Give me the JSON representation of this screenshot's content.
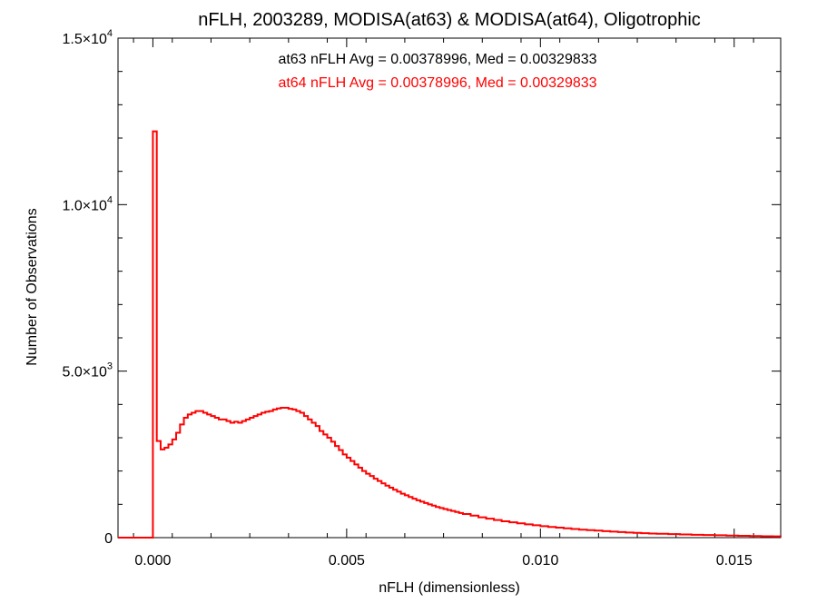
{
  "chart_data": {
    "type": "line",
    "title": "nFLH, 2003289, MODISA(at63) & MODISA(at64), Oligotrophic",
    "xlabel": "nFLH (dimensionless)",
    "ylabel": "Number of Observations",
    "xlim": [
      -0.0009,
      0.0162
    ],
    "ylim": [
      0,
      15000
    ],
    "x_ticks": [
      {
        "value": 0.0,
        "label": "0.000"
      },
      {
        "value": 0.005,
        "label": "0.005"
      },
      {
        "value": 0.01,
        "label": "0.010"
      },
      {
        "value": 0.015,
        "label": "0.015"
      }
    ],
    "y_ticks": [
      {
        "value": 0,
        "mantissa": "0",
        "exp": ""
      },
      {
        "value": 5000,
        "mantissa": "5.0×10",
        "exp": "3"
      },
      {
        "value": 10000,
        "mantissa": "1.0×10",
        "exp": "4"
      },
      {
        "value": 15000,
        "mantissa": "1.5×10",
        "exp": "4"
      }
    ],
    "annotations": [
      {
        "text": "at63 nFLH Avg = 0.00378996, Med = 0.00329833",
        "color": "#000000"
      },
      {
        "text": "at64 nFLH Avg = 0.00378996, Med = 0.00329833",
        "color": "#ff0000"
      }
    ],
    "series": [
      {
        "color": "#ff0000",
        "style": "step",
        "points": [
          [
            -0.0009,
            0
          ],
          [
            -0.0001,
            0
          ],
          [
            -0.0001,
            0
          ],
          [
            0.0,
            12200
          ],
          [
            0.0001,
            2900
          ],
          [
            0.0002,
            2650
          ],
          [
            0.0003,
            2700
          ],
          [
            0.0004,
            2800
          ],
          [
            0.0005,
            2950
          ],
          [
            0.0006,
            3150
          ],
          [
            0.0007,
            3400
          ],
          [
            0.0008,
            3600
          ],
          [
            0.0009,
            3700
          ],
          [
            0.001,
            3750
          ],
          [
            0.0011,
            3800
          ],
          [
            0.0012,
            3800
          ],
          [
            0.0013,
            3750
          ],
          [
            0.0014,
            3700
          ],
          [
            0.0015,
            3650
          ],
          [
            0.0016,
            3600
          ],
          [
            0.0017,
            3550
          ],
          [
            0.0018,
            3550
          ],
          [
            0.0019,
            3500
          ],
          [
            0.002,
            3450
          ],
          [
            0.0021,
            3480
          ],
          [
            0.0022,
            3450
          ],
          [
            0.0023,
            3500
          ],
          [
            0.0024,
            3550
          ],
          [
            0.0025,
            3600
          ],
          [
            0.0026,
            3650
          ],
          [
            0.0027,
            3700
          ],
          [
            0.0028,
            3750
          ],
          [
            0.0029,
            3780
          ],
          [
            0.003,
            3800
          ],
          [
            0.0031,
            3850
          ],
          [
            0.0032,
            3880
          ],
          [
            0.0033,
            3900
          ],
          [
            0.0034,
            3900
          ],
          [
            0.0035,
            3870
          ],
          [
            0.0036,
            3850
          ],
          [
            0.0037,
            3800
          ],
          [
            0.0038,
            3750
          ],
          [
            0.0039,
            3650
          ],
          [
            0.004,
            3550
          ],
          [
            0.0041,
            3450
          ],
          [
            0.0042,
            3350
          ],
          [
            0.0043,
            3200
          ],
          [
            0.0044,
            3100
          ],
          [
            0.0045,
            3000
          ],
          [
            0.0046,
            2880
          ],
          [
            0.0047,
            2750
          ],
          [
            0.0048,
            2630
          ],
          [
            0.0049,
            2500
          ],
          [
            0.005,
            2400
          ],
          [
            0.0051,
            2300
          ],
          [
            0.0052,
            2200
          ],
          [
            0.0053,
            2100
          ],
          [
            0.0054,
            2000
          ],
          [
            0.0055,
            1920
          ],
          [
            0.0056,
            1850
          ],
          [
            0.0057,
            1770
          ],
          [
            0.0058,
            1700
          ],
          [
            0.0059,
            1630
          ],
          [
            0.006,
            1560
          ],
          [
            0.0061,
            1500
          ],
          [
            0.0062,
            1440
          ],
          [
            0.0063,
            1380
          ],
          [
            0.0064,
            1320
          ],
          [
            0.0065,
            1270
          ],
          [
            0.0066,
            1220
          ],
          [
            0.0067,
            1170
          ],
          [
            0.0068,
            1120
          ],
          [
            0.0069,
            1080
          ],
          [
            0.007,
            1040
          ],
          [
            0.0071,
            1000
          ],
          [
            0.0072,
            960
          ],
          [
            0.0073,
            920
          ],
          [
            0.0074,
            890
          ],
          [
            0.0075,
            860
          ],
          [
            0.0076,
            830
          ],
          [
            0.0077,
            800
          ],
          [
            0.0078,
            770
          ],
          [
            0.0079,
            740
          ],
          [
            0.008,
            710
          ],
          [
            0.0082,
            660
          ],
          [
            0.0084,
            610
          ],
          [
            0.0086,
            570
          ],
          [
            0.0088,
            530
          ],
          [
            0.009,
            490
          ],
          [
            0.0092,
            460
          ],
          [
            0.0094,
            430
          ],
          [
            0.0096,
            400
          ],
          [
            0.0098,
            370
          ],
          [
            0.01,
            345
          ],
          [
            0.0102,
            320
          ],
          [
            0.0104,
            300
          ],
          [
            0.0106,
            280
          ],
          [
            0.0108,
            260
          ],
          [
            0.011,
            240
          ],
          [
            0.0112,
            225
          ],
          [
            0.0114,
            210
          ],
          [
            0.0116,
            195
          ],
          [
            0.0118,
            180
          ],
          [
            0.012,
            168
          ],
          [
            0.0122,
            155
          ],
          [
            0.0124,
            144
          ],
          [
            0.0126,
            134
          ],
          [
            0.0128,
            124
          ],
          [
            0.013,
            115
          ],
          [
            0.0133,
            105
          ],
          [
            0.0136,
            95
          ],
          [
            0.0139,
            85
          ],
          [
            0.0142,
            77
          ],
          [
            0.0145,
            70
          ],
          [
            0.0148,
            62
          ],
          [
            0.0151,
            55
          ],
          [
            0.0154,
            48
          ],
          [
            0.0157,
            42
          ],
          [
            0.016,
            36
          ],
          [
            0.0162,
            32
          ]
        ]
      }
    ]
  }
}
